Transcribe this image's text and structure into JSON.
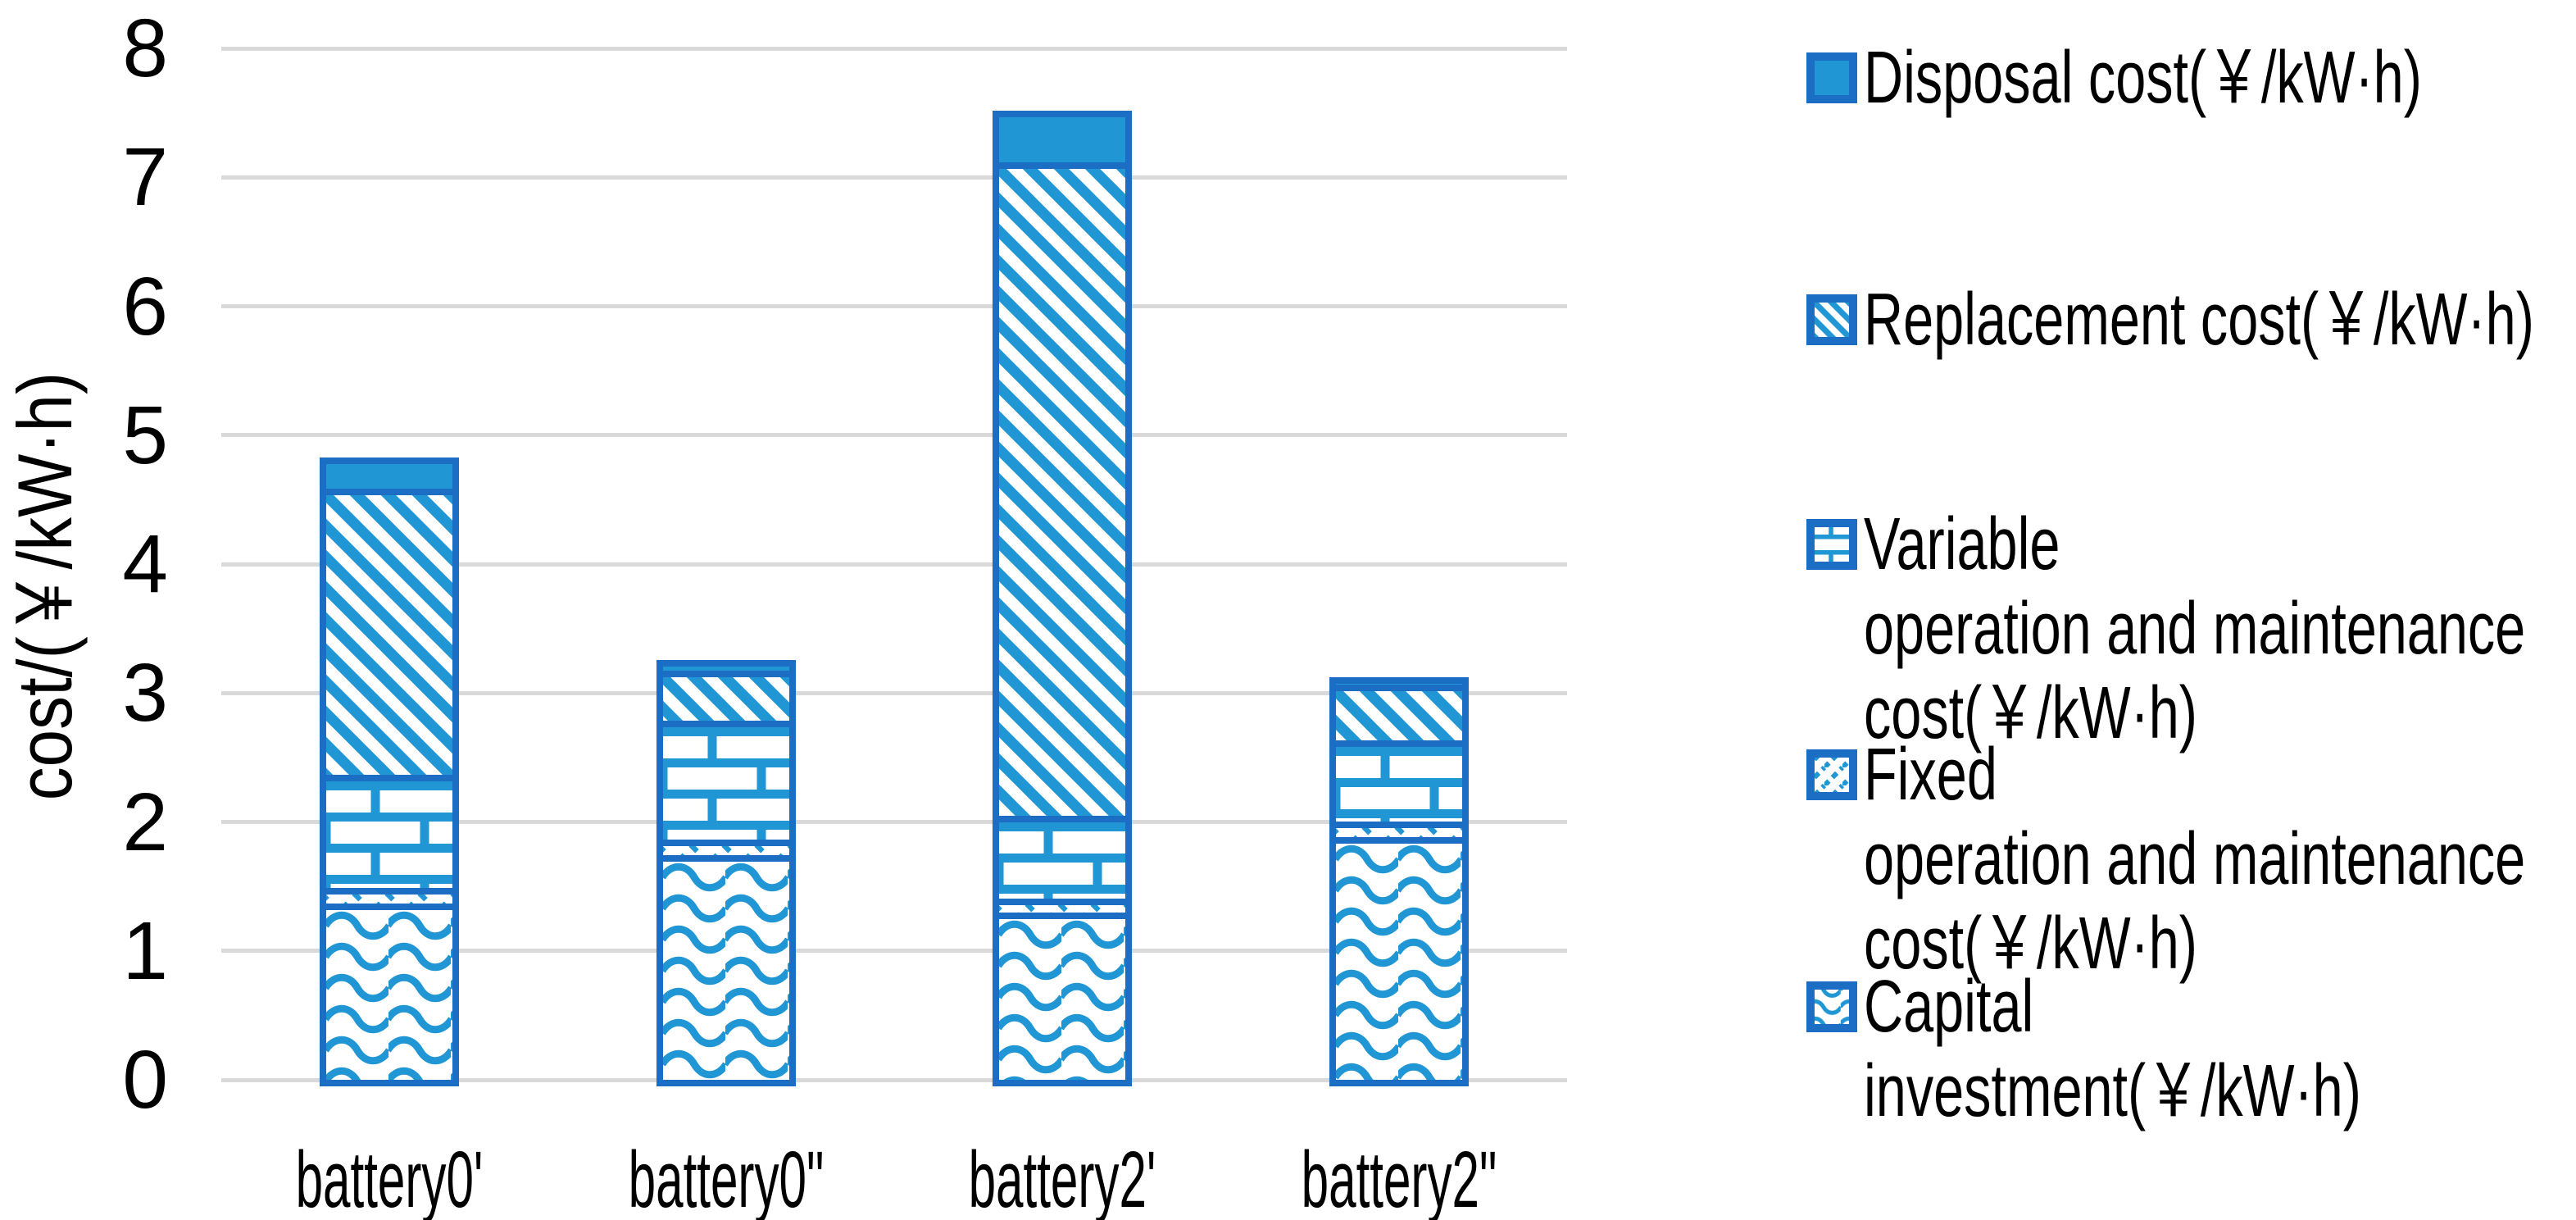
{
  "chart_data": {
    "type": "bar",
    "stacked": true,
    "title": "",
    "xlabel": "",
    "ylabel": "cost/(￥/kW·h)",
    "ylim": [
      0,
      8
    ],
    "yticks": [
      0,
      1,
      2,
      3,
      4,
      5,
      6,
      7,
      8
    ],
    "grid": "horizontal-gray",
    "legend_position": "right",
    "categories": [
      "battery0'",
      "battery0\"",
      "battery2'",
      "battery2\""
    ],
    "series": [
      {
        "name": "Capital investment(￥/kW·h)",
        "pattern": "wave",
        "values": [
          1.37,
          1.74,
          1.3,
          1.88
        ]
      },
      {
        "name": "Fixed operation and maintenance cost(￥/kW·h)",
        "pattern": "dash",
        "values": [
          0.12,
          0.12,
          0.11,
          0.12
        ]
      },
      {
        "name": "Variable operation and maintenance cost(￥/kW·h)",
        "pattern": "brick",
        "values": [
          0.88,
          0.92,
          0.64,
          0.63
        ]
      },
      {
        "name": "Replacement cost(￥/kW·h)",
        "pattern": "diag",
        "values": [
          2.22,
          0.39,
          5.07,
          0.43
        ]
      },
      {
        "name": "Disposal cost(￥/kW·h)",
        "pattern": "solid",
        "values": [
          0.24,
          0.08,
          0.4,
          0.06
        ]
      }
    ],
    "approx_totals": [
      4.83,
      3.25,
      7.52,
      3.12
    ],
    "colors": {
      "fill_blue": "#2196D4",
      "border_blue": "#1B6EC4",
      "gridline": "#D9D9D9",
      "text": "#000000",
      "background": "#FFFFFF"
    }
  },
  "axes": {
    "y_title": "cost/(￥/kW·h)"
  },
  "legend": {
    "items": [
      {
        "key": "disposal",
        "pattern": "solid",
        "lines": [
          "Disposal cost(￥/kW·h)"
        ]
      },
      {
        "key": "replacement",
        "pattern": "diag",
        "lines": [
          "Replacement cost(￥/kW·h)"
        ]
      },
      {
        "key": "variable",
        "pattern": "brick",
        "lines": [
          "Variable",
          "operation and maintenance",
          "cost(￥/kW·h)"
        ]
      },
      {
        "key": "fixed",
        "pattern": "dash",
        "lines": [
          "Fixed",
          "operation and maintenance",
          "cost(￥/kW·h)"
        ]
      },
      {
        "key": "capital",
        "pattern": "wave",
        "lines": [
          "Capital",
          "investment(￥/kW·h)"
        ]
      }
    ]
  }
}
